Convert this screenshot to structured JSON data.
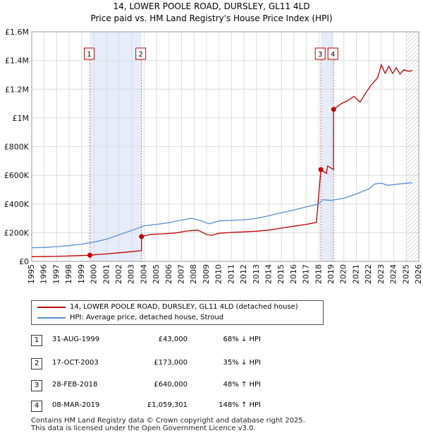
{
  "title_line1": "14, LOWER POOLE ROAD, DURSLEY, GL11 4LD",
  "title_line2": "Price paid vs. HM Land Registry's House Price Index (HPI)",
  "colors": {
    "property": "#c00000",
    "hpi": "#5b8fd4",
    "shade": "#dde6f7",
    "grid": "#dcdcdc"
  },
  "chart_data": {
    "type": "line",
    "x_range": [
      1995,
      2026
    ],
    "ylim": [
      0,
      1600000
    ],
    "y_ticks": [
      0,
      200000,
      400000,
      600000,
      800000,
      1000000,
      1200000,
      1400000,
      1600000
    ],
    "y_tick_labels": [
      "£0",
      "£200K",
      "£400K",
      "£600K",
      "£800K",
      "£1M",
      "£1.2M",
      "£1.4M",
      "£1.6M"
    ],
    "x_ticks": [
      1995,
      1996,
      1997,
      1998,
      1999,
      2000,
      2001,
      2002,
      2003,
      2004,
      2005,
      2006,
      2007,
      2008,
      2009,
      2010,
      2011,
      2012,
      2013,
      2014,
      2015,
      2016,
      2017,
      2018,
      2019,
      2020,
      2021,
      2022,
      2023,
      2024,
      2025,
      2026
    ],
    "shaded_periods": [
      [
        1999.66,
        2003.79
      ],
      [
        2018.16,
        2019.18
      ]
    ],
    "projection_start": 2025.0,
    "series": [
      {
        "name": "14, LOWER POOLE ROAD, DURSLEY, GL11 4LD (detached house)",
        "color": "#c00000",
        "points": [
          [
            1995.0,
            33000
          ],
          [
            1996.0,
            33500
          ],
          [
            1997.0,
            35000
          ],
          [
            1998.0,
            38000
          ],
          [
            1999.0,
            41000
          ],
          [
            1999.66,
            43000
          ],
          [
            2000.0,
            46000
          ],
          [
            2001.0,
            52000
          ],
          [
            2002.0,
            60000
          ],
          [
            2003.0,
            68000
          ],
          [
            2003.79,
            75000
          ],
          [
            2003.8,
            173000
          ],
          [
            2004.5,
            188000
          ],
          [
            2005.5,
            192000
          ],
          [
            2006.5,
            198000
          ],
          [
            2007.5,
            212000
          ],
          [
            2008.3,
            218000
          ],
          [
            2009.0,
            188000
          ],
          [
            2009.4,
            182000
          ],
          [
            2010.0,
            196000
          ],
          [
            2011.0,
            202000
          ],
          [
            2012.0,
            206000
          ],
          [
            2013.0,
            210000
          ],
          [
            2014.0,
            218000
          ],
          [
            2015.0,
            232000
          ],
          [
            2016.0,
            245000
          ],
          [
            2017.0,
            258000
          ],
          [
            2017.8,
            272000
          ],
          [
            2018.16,
            640000
          ],
          [
            2018.6,
            612000
          ],
          [
            2018.7,
            665000
          ],
          [
            2019.17,
            640000
          ],
          [
            2019.18,
            1059301
          ],
          [
            2019.8,
            1100000
          ],
          [
            2020.3,
            1120000
          ],
          [
            2020.8,
            1150000
          ],
          [
            2021.3,
            1110000
          ],
          [
            2021.8,
            1180000
          ],
          [
            2022.2,
            1230000
          ],
          [
            2022.7,
            1280000
          ],
          [
            2023.0,
            1370000
          ],
          [
            2023.3,
            1310000
          ],
          [
            2023.6,
            1360000
          ],
          [
            2023.9,
            1310000
          ],
          [
            2024.2,
            1350000
          ],
          [
            2024.5,
            1305000
          ],
          [
            2024.8,
            1335000
          ],
          [
            2025.2,
            1325000
          ],
          [
            2025.5,
            1330000
          ]
        ]
      },
      {
        "name": "HPI: Average price, detached house, Stroud",
        "color": "#5b8fd4",
        "points": [
          [
            1995.0,
            95000
          ],
          [
            1996.0,
            97000
          ],
          [
            1997.0,
            103000
          ],
          [
            1998.0,
            110000
          ],
          [
            1999.0,
            120000
          ],
          [
            2000.0,
            135000
          ],
          [
            2001.0,
            155000
          ],
          [
            2002.0,
            185000
          ],
          [
            2003.0,
            215000
          ],
          [
            2004.0,
            248000
          ],
          [
            2005.0,
            258000
          ],
          [
            2006.0,
            270000
          ],
          [
            2007.0,
            288000
          ],
          [
            2007.8,
            300000
          ],
          [
            2008.5,
            285000
          ],
          [
            2009.2,
            262000
          ],
          [
            2010.0,
            282000
          ],
          [
            2011.0,
            286000
          ],
          [
            2012.0,
            290000
          ],
          [
            2013.0,
            300000
          ],
          [
            2014.0,
            318000
          ],
          [
            2015.0,
            338000
          ],
          [
            2016.0,
            358000
          ],
          [
            2017.0,
            380000
          ],
          [
            2018.0,
            400000
          ],
          [
            2018.3,
            430000
          ],
          [
            2019.0,
            425000
          ],
          [
            2020.0,
            440000
          ],
          [
            2021.0,
            470000
          ],
          [
            2022.0,
            505000
          ],
          [
            2022.5,
            540000
          ],
          [
            2023.0,
            545000
          ],
          [
            2023.5,
            530000
          ],
          [
            2024.0,
            535000
          ],
          [
            2024.5,
            540000
          ],
          [
            2025.0,
            545000
          ],
          [
            2025.5,
            548000
          ]
        ]
      }
    ],
    "transactions": [
      {
        "label": "1",
        "x": 1999.66,
        "y": 43000,
        "date": "31-AUG-1999",
        "price": "£43,000",
        "hpi": "68% ↓ HPI"
      },
      {
        "label": "2",
        "x": 2003.79,
        "y": 173000,
        "date": "17-OCT-2003",
        "price": "£173,000",
        "hpi": "35% ↓ HPI"
      },
      {
        "label": "3",
        "x": 2018.16,
        "y": 640000,
        "date": "28-FEB-2018",
        "price": "£640,000",
        "hpi": "48% ↑ HPI"
      },
      {
        "label": "4",
        "x": 2019.18,
        "y": 1059301,
        "date": "08-MAR-2019",
        "price": "£1,059,301",
        "hpi": "148% ↑ HPI"
      }
    ]
  },
  "legend": {
    "property_label": "14, LOWER POOLE ROAD, DURSLEY, GL11 4LD (detached house)",
    "hpi_label": "HPI: Average price, detached house, Stroud"
  },
  "footer_line1": "Contains HM Land Registry data © Crown copyright and database right 2025.",
  "footer_line2": "This data is licensed under the Open Government Licence v3.0."
}
